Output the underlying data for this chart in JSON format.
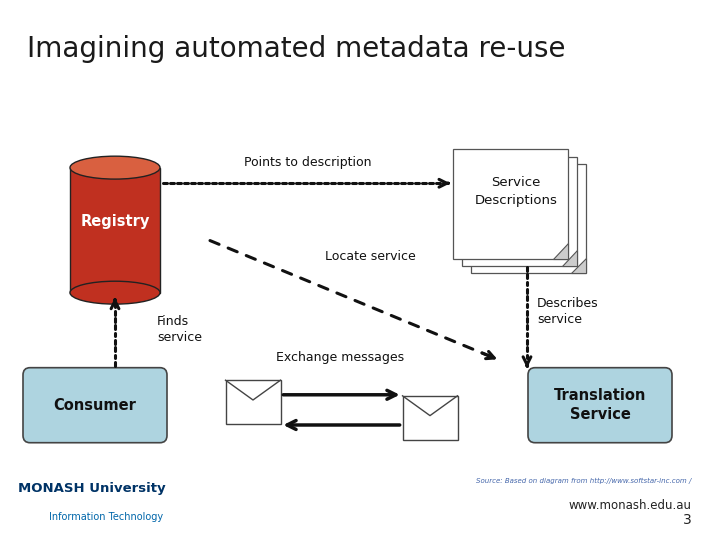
{
  "title": "Imagining automated metadata re-use",
  "title_fontsize": 20,
  "title_color": "#1a1a1a",
  "bg_color": "#ffffff",
  "content_bg": "#cccccc",
  "header_bar_color": "#5b2d6e",
  "registry_label": "Registry",
  "registry_color_top": "#d96040",
  "registry_color_body": "#c03020",
  "service_desc_label": "Service\nDescriptions",
  "consumer_label": "Consumer",
  "consumer_color": "#aed4e0",
  "translation_label": "Translation\nService",
  "translation_color": "#aed4e0",
  "points_to_desc": "Points to description",
  "locate_service": "Locate service",
  "finds_service": "Finds\nservice",
  "describes_service": "Describes\nservice",
  "exchange_messages": "Exchange messages",
  "source_text": "Source: Based on diagram from http://www.softstar-inc.com /",
  "website_text": "www.monash.edu.au",
  "page_num": "3"
}
